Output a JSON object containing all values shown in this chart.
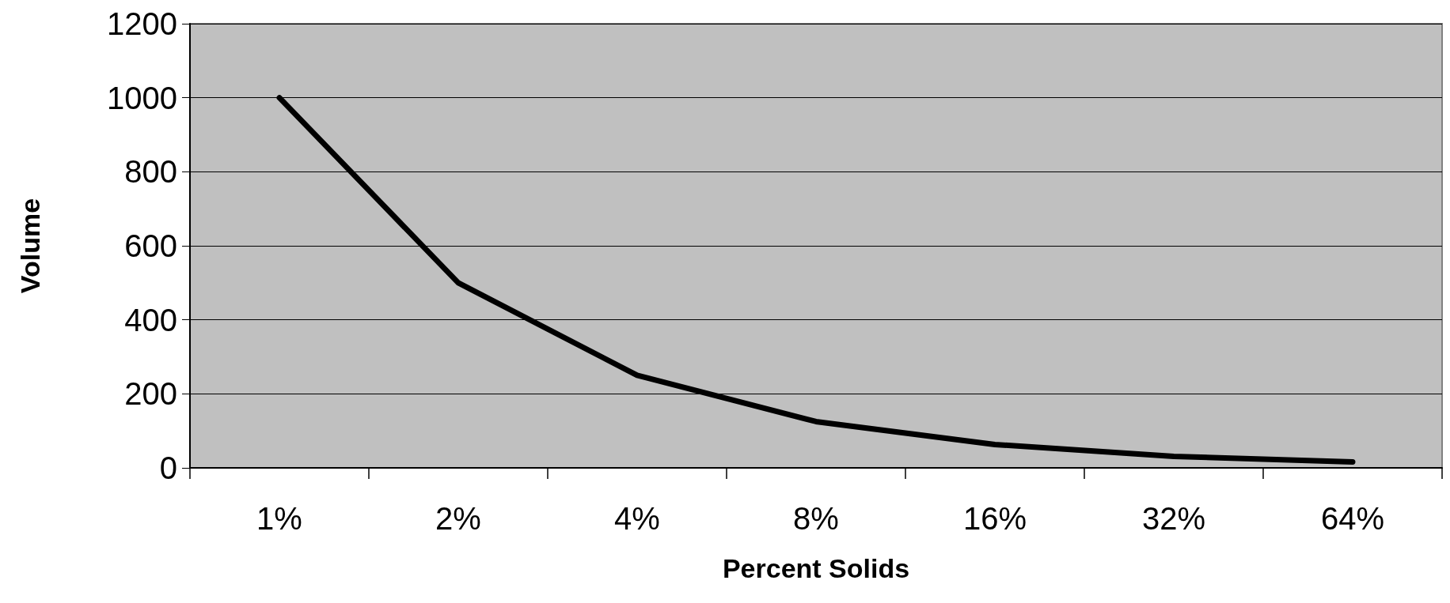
{
  "chart_data": {
    "type": "line",
    "xlabel": "Percent Solids",
    "ylabel": "Volume",
    "categories": [
      "1%",
      "2%",
      "4%",
      "8%",
      "16%",
      "32%",
      "64%"
    ],
    "series": [
      {
        "color": "#000000",
        "values": [
          1000,
          500,
          250,
          125,
          63,
          31,
          16
        ]
      }
    ],
    "ylim": [
      0,
      1200
    ],
    "yticks": [
      0,
      200,
      400,
      600,
      800,
      1000,
      1200
    ],
    "grid": "y",
    "marker": "none",
    "line_style": "solid"
  }
}
